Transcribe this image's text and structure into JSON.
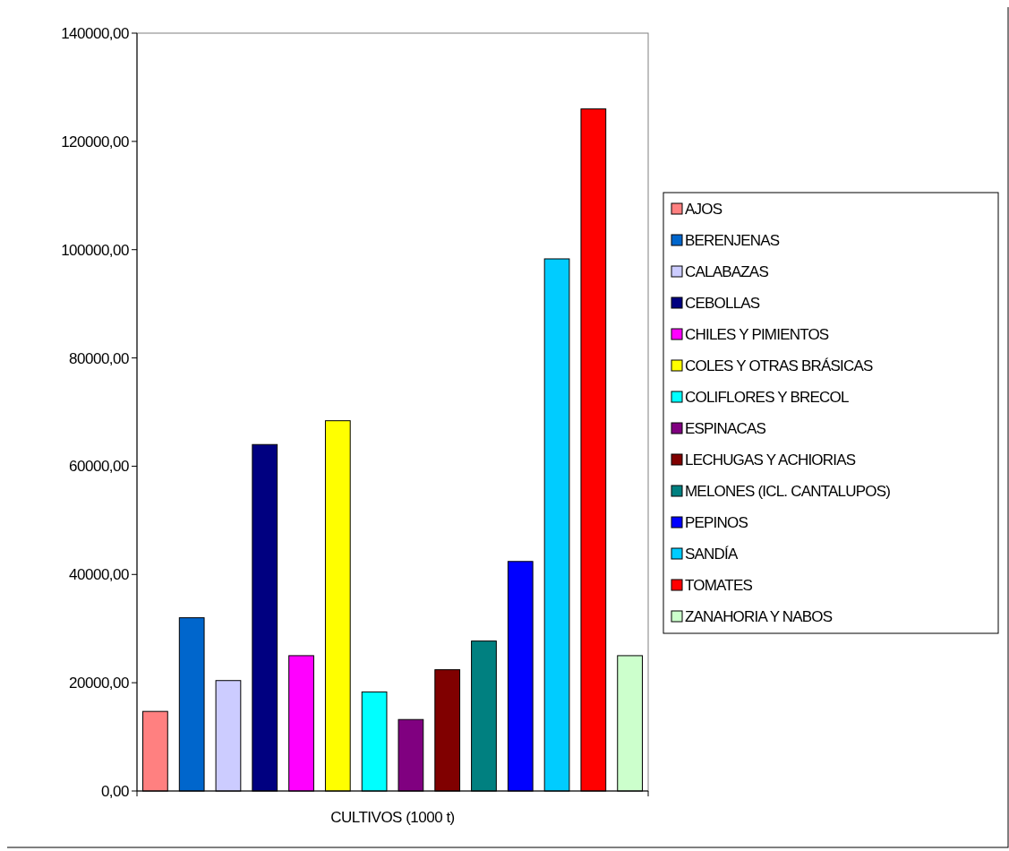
{
  "chart_data": {
    "type": "bar",
    "xlabel": "CULTIVOS (1000 t)",
    "categories": [
      null
    ],
    "series": [
      {
        "name": "AJOS",
        "color": "#ff8080",
        "values": [
          14700
        ]
      },
      {
        "name": "BERENJENAS",
        "color": "#0066cc",
        "values": [
          32000
        ]
      },
      {
        "name": "CALABAZAS",
        "color": "#ccccff",
        "values": [
          20400
        ]
      },
      {
        "name": "CEBOLLAS",
        "color": "#000080",
        "values": [
          64000
        ]
      },
      {
        "name": "CHILES Y PIMIENTOS",
        "color": "#ff00ff",
        "values": [
          25000
        ]
      },
      {
        "name": "COLES Y OTRAS BRÁSICAS",
        "color": "#ffff00",
        "values": [
          68400
        ]
      },
      {
        "name": "COLIFLORES Y BRECOL",
        "color": "#00ffff",
        "values": [
          18300
        ]
      },
      {
        "name": "ESPINACAS",
        "color": "#800080",
        "values": [
          13200
        ]
      },
      {
        "name": "LECHUGAS Y ACHIORIAS",
        "color": "#800000",
        "values": [
          22400
        ]
      },
      {
        "name": "MELONES (ICL. CANTALUPOS)",
        "color": "#008080",
        "values": [
          27700
        ]
      },
      {
        "name": "PEPINOS",
        "color": "#0000ff",
        "values": [
          42400
        ]
      },
      {
        "name": "SANDÍA",
        "color": "#00ccff",
        "values": [
          98300
        ]
      },
      {
        "name": "TOMATES",
        "color": "#ff0000",
        "values": [
          126000
        ]
      },
      {
        "name": "ZANAHORIA Y NABOS",
        "color": "#ccffcc",
        "values": [
          25000
        ]
      }
    ],
    "ylim": [
      0,
      140000
    ],
    "yticks": [
      {
        "value": 0,
        "label": "0,00"
      },
      {
        "value": 20000,
        "label": "20000,00"
      },
      {
        "value": 40000,
        "label": "40000,00"
      },
      {
        "value": 60000,
        "label": "60000,00"
      },
      {
        "value": 80000,
        "label": "80000,00"
      },
      {
        "value": 100000,
        "label": "100000,00"
      },
      {
        "value": 120000,
        "label": "120000,00"
      },
      {
        "value": 140000,
        "label": "140000,00"
      }
    ],
    "legend": "right"
  }
}
